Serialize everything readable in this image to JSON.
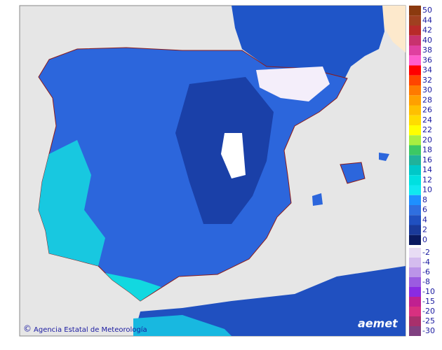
{
  "attribution": "Agencia Estatal de Meteorología",
  "logo": "aemet",
  "copyright": "©",
  "legend": {
    "upper": [
      {
        "value": 50,
        "color": "#8b3a0f"
      },
      {
        "value": 44,
        "color": "#a04020"
      },
      {
        "value": 42,
        "color": "#b82a2a"
      },
      {
        "value": 40,
        "color": "#c8326e"
      },
      {
        "value": 38,
        "color": "#e040a0"
      },
      {
        "value": 36,
        "color": "#ff5ccc"
      },
      {
        "value": 34,
        "color": "#ff0000"
      },
      {
        "value": 32,
        "color": "#ff4500"
      },
      {
        "value": 30,
        "color": "#ff7a00"
      },
      {
        "value": 28,
        "color": "#ffa000"
      },
      {
        "value": 26,
        "color": "#ffc000"
      },
      {
        "value": 24,
        "color": "#ffdc00"
      },
      {
        "value": 22,
        "color": "#ffff00"
      },
      {
        "value": 20,
        "color": "#a8ee40"
      },
      {
        "value": 18,
        "color": "#3cc864"
      },
      {
        "value": 16,
        "color": "#20b29a"
      },
      {
        "value": 14,
        "color": "#00c8c8"
      },
      {
        "value": 12,
        "color": "#00e0e0"
      },
      {
        "value": 10,
        "color": "#10e8f0"
      },
      {
        "value": 8,
        "color": "#1e90ff"
      },
      {
        "value": 6,
        "color": "#2f6fe0"
      },
      {
        "value": 4,
        "color": "#2050c0"
      },
      {
        "value": 2,
        "color": "#1a3a9a"
      },
      {
        "value": 0,
        "color": "#0a1a60"
      }
    ],
    "lower": [
      {
        "value": -2,
        "color": "#e8dcf4"
      },
      {
        "value": -4,
        "color": "#d4bcee"
      },
      {
        "value": -6,
        "color": "#bb94e8"
      },
      {
        "value": -8,
        "color": "#9b5ce0"
      },
      {
        "value": -10,
        "color": "#8a2be2"
      },
      {
        "value": -15,
        "color": "#c02090"
      },
      {
        "value": -20,
        "color": "#d83080"
      },
      {
        "value": -25,
        "color": "#a8306c"
      },
      {
        "value": -30,
        "color": "#804080"
      }
    ]
  }
}
